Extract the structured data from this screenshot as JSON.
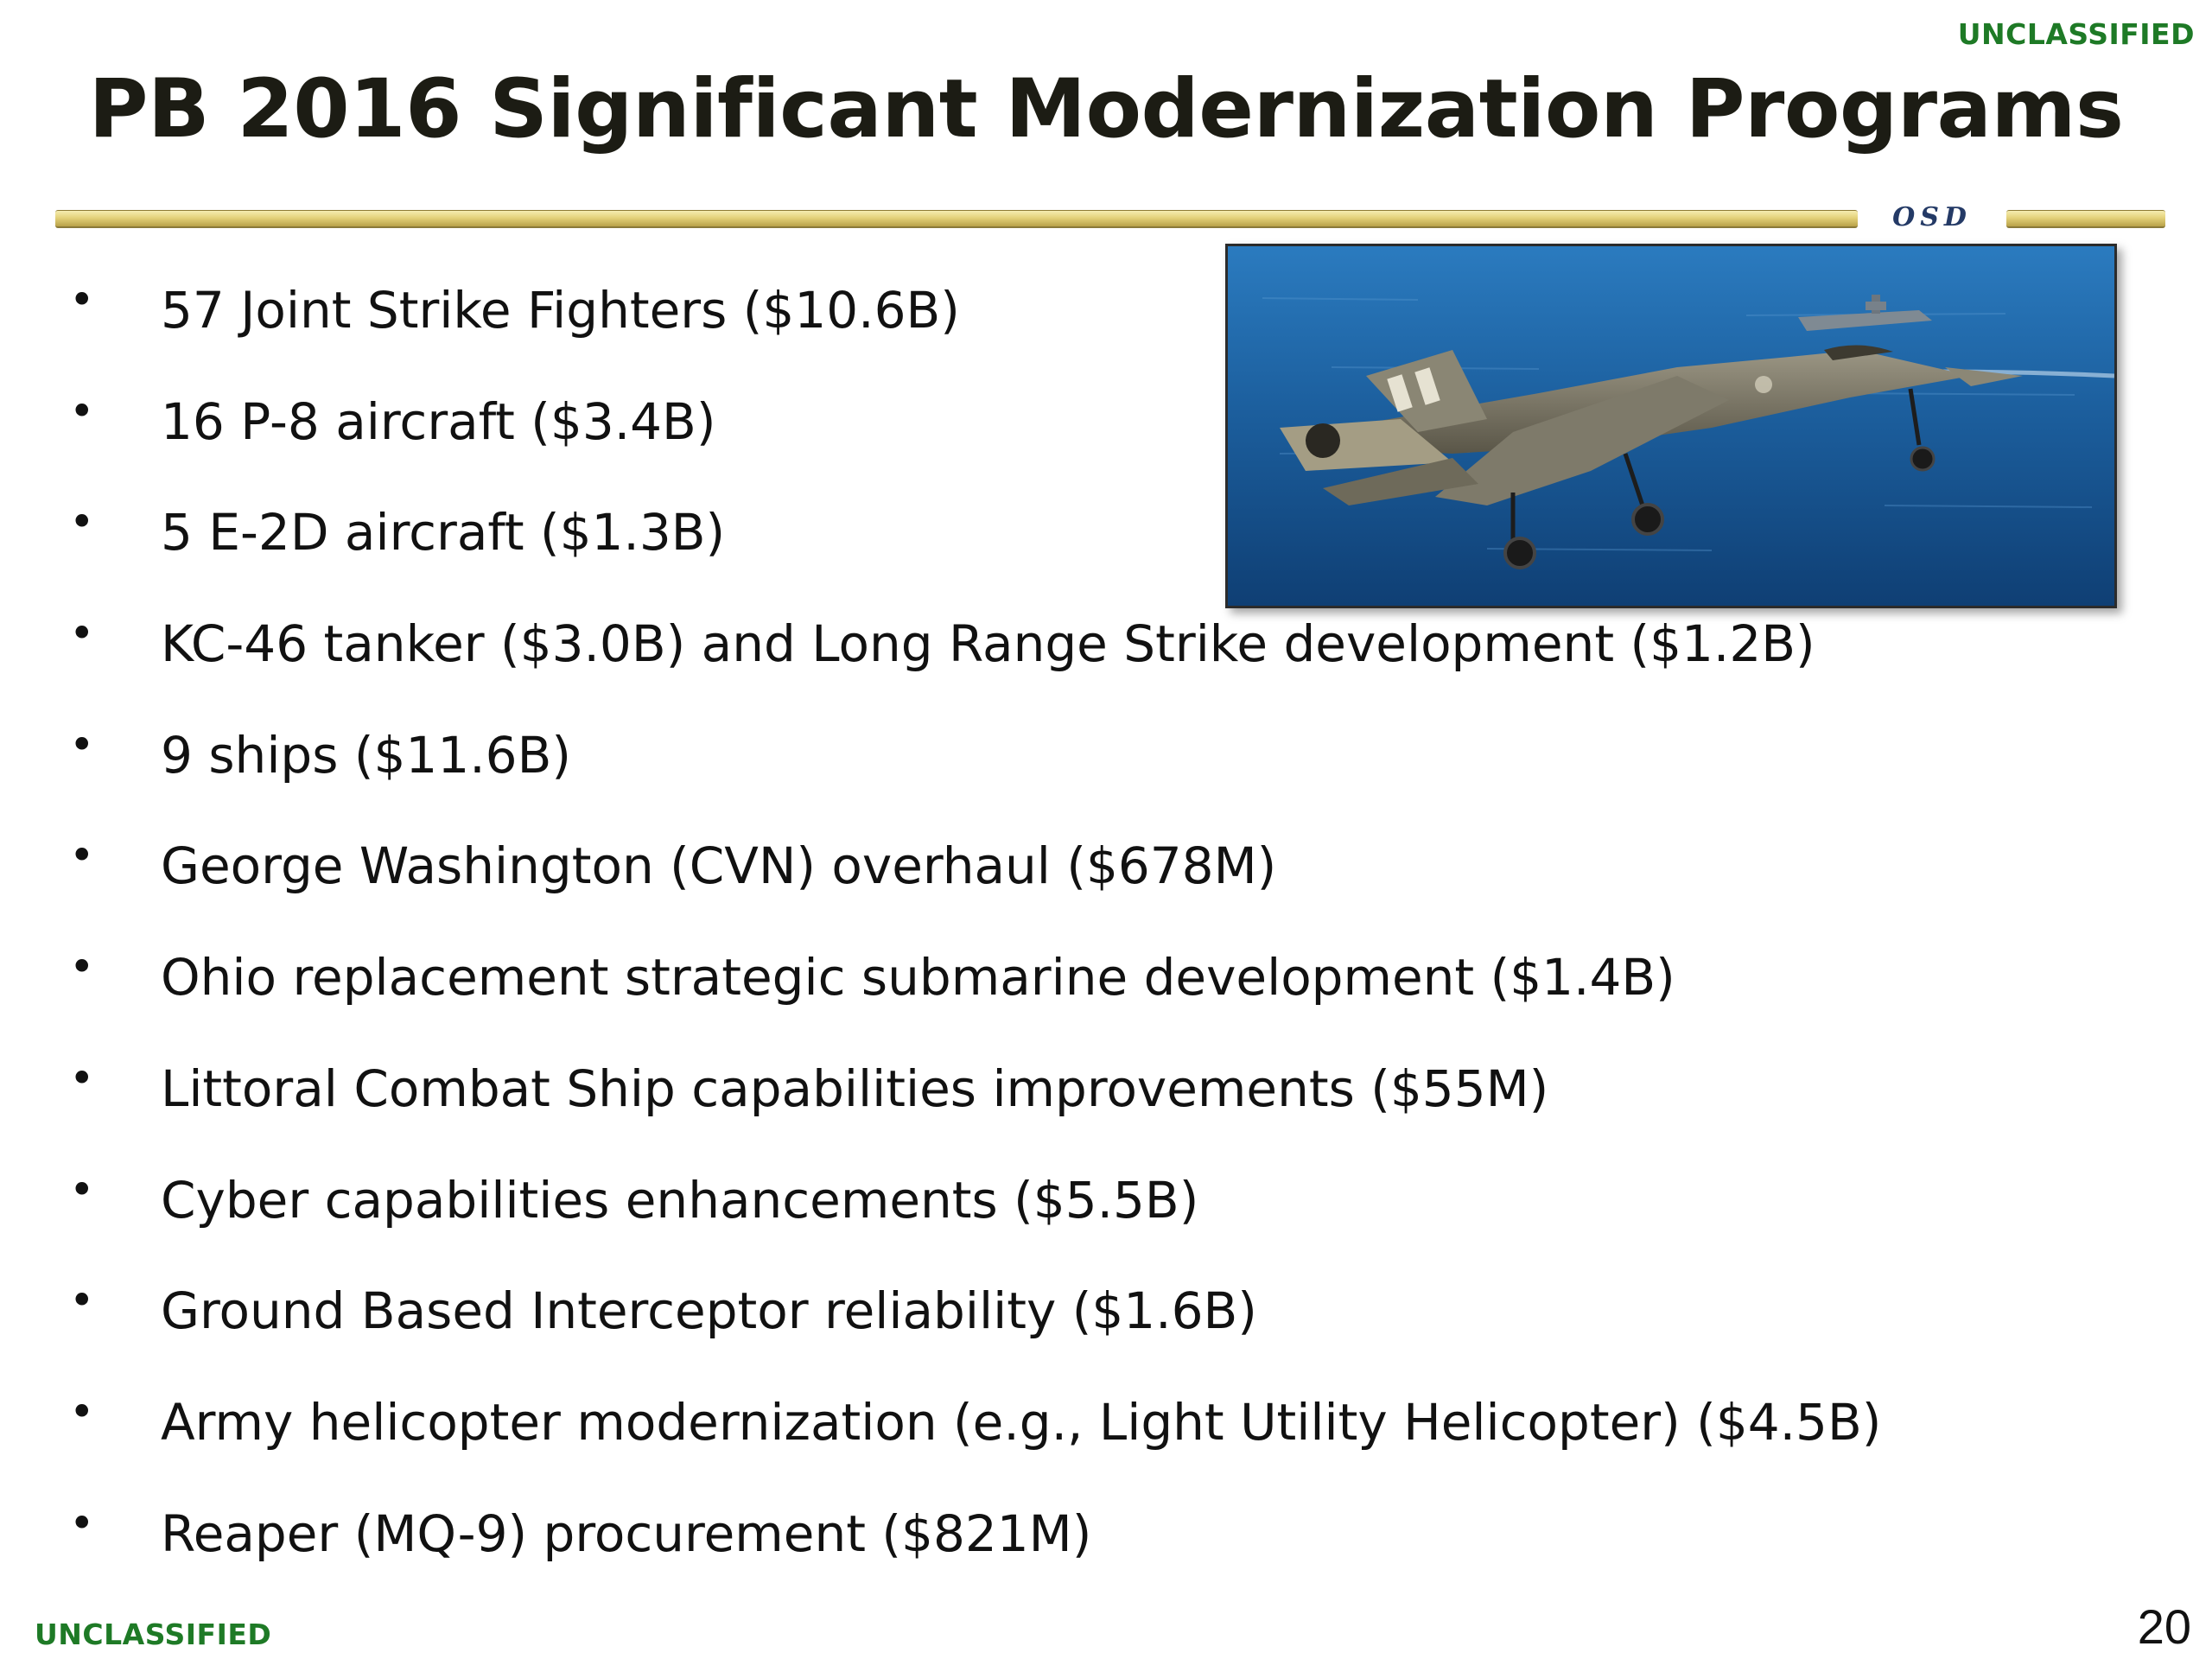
{
  "classification": {
    "top": "UNCLASSIFIED",
    "bottom": "UNCLASSIFIED"
  },
  "title": "PB 2016 Significant Modernization Programs",
  "header_rule": {
    "label": "OSD"
  },
  "photo": {
    "subject": "F-35 fighter jet in flight over ocean with aircraft carrier in background"
  },
  "bullets": [
    "57 Joint Strike Fighters ($10.6B)",
    "16 P-8 aircraft ($3.4B)",
    "5 E-2D aircraft ($1.3B)",
    "KC-46 tanker ($3.0B) and Long Range Strike development ($1.2B)",
    "9 ships ($11.6B)",
    "George Washington (CVN) overhaul ($678M)",
    "Ohio replacement strategic submarine development ($1.4B)",
    "Littoral Combat Ship capabilities improvements ($55M)",
    "Cyber capabilities enhancements ($5.5B)",
    "Ground Based Interceptor reliability ($1.6B)",
    "Army helicopter modernization (e.g., Light Utility Helicopter) ($4.5B)",
    "Reaper (MQ-9) procurement ($821M)"
  ],
  "bullet_glyph": "•",
  "page_number": "20",
  "colors": {
    "classification": "#1e7a26",
    "title": "#1c1c14",
    "rule_gold": "#e4d27a",
    "osd_label": "#243a66",
    "ocean": "#1f5fa0"
  }
}
